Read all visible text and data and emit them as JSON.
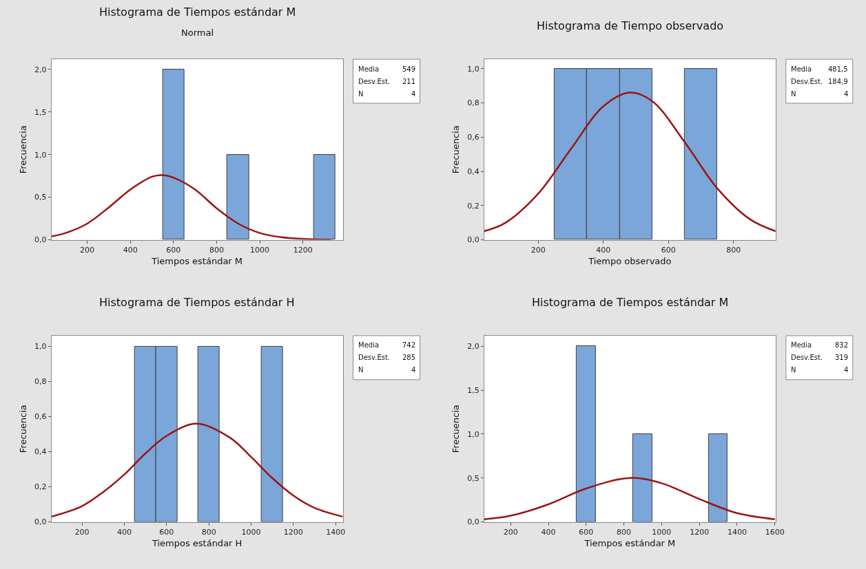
{
  "chart_data": [
    {
      "type": "histogram",
      "title": "Histograma de Tiempos estándar M",
      "subtitle": "Normal",
      "xlabel": "Tiempos estándar M",
      "ylabel": "Frecuencia",
      "bins": [
        550,
        650,
        750,
        850,
        950,
        1050,
        1150,
        1250,
        1350
      ],
      "values": [
        2,
        0,
        0,
        1,
        0,
        0,
        0,
        1
      ],
      "color": "#7ba6d9",
      "series": [
        {
          "type": "line",
          "color": "#9b1414",
          "x": [
            34,
            100,
            200,
            300,
            400,
            500,
            549,
            600,
            700,
            800,
            900,
            1000,
            1100,
            1200,
            1330
          ],
          "values": [
            0.04,
            0.08,
            0.19,
            0.38,
            0.59,
            0.74,
            0.76,
            0.73,
            0.59,
            0.37,
            0.19,
            0.08,
            0.03,
            0.01,
            0.0
          ]
        }
      ],
      "xlim": [
        34,
        1385
      ],
      "xticks": [
        200,
        400,
        600,
        800,
        1000,
        1200
      ],
      "ylim": [
        0,
        2.12
      ],
      "yticks": [
        {
          "value": 0,
          "label": "0,0"
        },
        {
          "value": 0.5,
          "label": "0,5"
        },
        {
          "value": 1,
          "label": "1,0"
        },
        {
          "value": 1.5,
          "label": "1,5"
        },
        {
          "value": 2,
          "label": "2,0"
        }
      ],
      "annotations": [
        "Media",
        "549",
        "Desv.Est.",
        "211",
        "N",
        "4"
      ]
    },
    {
      "type": "histogram",
      "title": "Histograma de Tiempo observado",
      "xlabel": "Tiempo observado",
      "ylabel": "Frecuencia",
      "bins": [
        250,
        350,
        450,
        550,
        650,
        750
      ],
      "values": [
        1,
        1,
        1,
        0,
        1
      ],
      "color": "#7ba6d9",
      "series": [
        {
          "type": "line",
          "color": "#9b1414",
          "x": [
            34,
            100,
            200,
            300,
            400,
            481.5,
            550,
            650,
            750,
            850,
            929
          ],
          "values": [
            0.05,
            0.1,
            0.27,
            0.53,
            0.78,
            0.86,
            0.81,
            0.57,
            0.3,
            0.12,
            0.05
          ]
        }
      ],
      "xlim": [
        34,
        929
      ],
      "xticks": [
        200,
        400,
        600,
        800
      ],
      "ylim": [
        0,
        1.055
      ],
      "yticks": [
        {
          "value": 0,
          "label": "0,0"
        },
        {
          "value": 0.2,
          "label": "0,2"
        },
        {
          "value": 0.4,
          "label": "0,4"
        },
        {
          "value": 0.6,
          "label": "0,6"
        },
        {
          "value": 0.8,
          "label": "0,8"
        },
        {
          "value": 1,
          "label": "1,0"
        }
      ],
      "annotations": [
        "Media",
        "481,5",
        "Desv.Est.",
        "184,9",
        "N",
        "4"
      ]
    },
    {
      "type": "histogram",
      "title": "Histograma de Tiempos estándar H",
      "xlabel": "Tiempos estándar H",
      "ylabel": "Frecuencia",
      "bins": [
        450,
        550,
        650,
        750,
        850,
        950,
        1050,
        1150
      ],
      "values": [
        1,
        1,
        0,
        1,
        0,
        0,
        1
      ],
      "color": "#7ba6d9",
      "series": [
        {
          "type": "line",
          "color": "#9b1414",
          "x": [
            55,
            200,
            300,
            400,
            500,
            600,
            742,
            900,
            1000,
            1100,
            1200,
            1300,
            1434
          ],
          "values": [
            0.03,
            0.09,
            0.17,
            0.27,
            0.39,
            0.49,
            0.56,
            0.48,
            0.37,
            0.25,
            0.15,
            0.08,
            0.03
          ]
        }
      ],
      "xlim": [
        55,
        1434
      ],
      "xticks": [
        200,
        400,
        600,
        800,
        1000,
        1200,
        1400
      ],
      "ylim": [
        0,
        1.061
      ],
      "yticks": [
        {
          "value": 0,
          "label": "0,0"
        },
        {
          "value": 0.2,
          "label": "0,2"
        },
        {
          "value": 0.4,
          "label": "0,4"
        },
        {
          "value": 0.6,
          "label": "0,6"
        },
        {
          "value": 0.8,
          "label": "0,8"
        },
        {
          "value": 1,
          "label": "1,0"
        }
      ],
      "annotations": [
        "Media",
        "742",
        "Desv.Est.",
        "285",
        "N",
        "4"
      ]
    },
    {
      "type": "histogram",
      "title": "Histograma de Tiempos estándar M",
      "xlabel": "Tiempos estándar M",
      "ylabel": "Frecuencia",
      "bins": [
        550,
        650,
        750,
        850,
        950,
        1050,
        1150,
        1250,
        1350
      ],
      "values": [
        2,
        0,
        0,
        1,
        0,
        0,
        0,
        1
      ],
      "color": "#7ba6d9",
      "series": [
        {
          "type": "line",
          "color": "#9b1414",
          "x": [
            60,
            200,
            400,
            600,
            832,
            1000,
            1200,
            1400,
            1600
          ],
          "values": [
            0.03,
            0.07,
            0.2,
            0.38,
            0.5,
            0.44,
            0.26,
            0.1,
            0.03
          ]
        }
      ],
      "xlim": [
        60,
        1604
      ],
      "xticks": [
        200,
        400,
        600,
        800,
        1000,
        1200,
        1400,
        1600
      ],
      "ylim": [
        0,
        2.12
      ],
      "yticks": [
        {
          "value": 0,
          "label": "0,0"
        },
        {
          "value": 0.5,
          "label": "0,5"
        },
        {
          "value": 1,
          "label": "1,0"
        },
        {
          "value": 1.5,
          "label": "1,5"
        },
        {
          "value": 2,
          "label": "2,0"
        }
      ],
      "annotations": [
        "Media",
        "832",
        "Desv.Est.",
        "319",
        "N",
        "4"
      ]
    }
  ]
}
